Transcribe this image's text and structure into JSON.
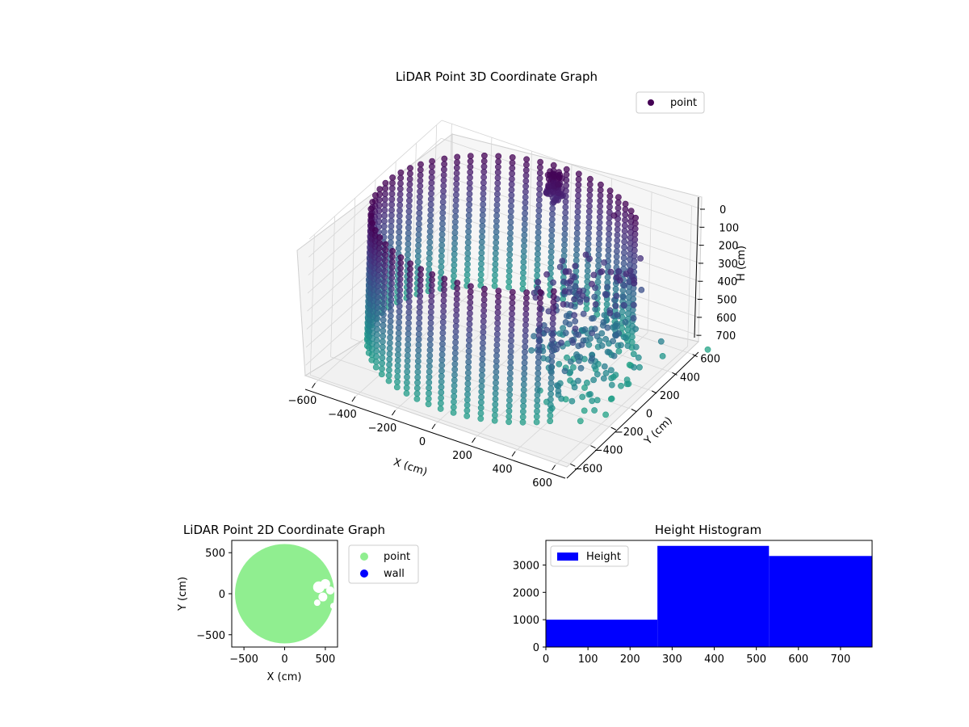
{
  "chart_data": [
    {
      "type": "scatter",
      "projection": "3d",
      "title": "LiDAR Point 3D Coordinate Graph",
      "xlabel": "X (cm)",
      "ylabel": "Y (cm)",
      "zlabel": "H (cm)",
      "xlim": [
        -650,
        650
      ],
      "ylim": [
        -650,
        650
      ],
      "zlim": [
        0,
        780
      ],
      "z_inverted": true,
      "xticks": [
        "−600",
        "−400",
        "−200",
        "0",
        "200",
        "400",
        "600"
      ],
      "yticks": [
        "−600",
        "−400",
        "−200",
        "0",
        "200",
        "400",
        "600"
      ],
      "zticks": [
        "0",
        "100",
        "200",
        "300",
        "400",
        "500",
        "600",
        "700"
      ],
      "legend": {
        "position": "top-right",
        "entries": [
          {
            "label": "point",
            "color": "#440154"
          }
        ]
      },
      "grid": true,
      "colormap": "viridis",
      "structure": {
        "wall_radius": 600,
        "wall_height": [
          0,
          720
        ],
        "gap_angle_deg": [
          -40,
          40
        ],
        "stray_points": [
          {
            "x": 620,
            "y": 360,
            "h": 680
          },
          {
            "x": 640,
            "y": 300,
            "h": 560
          },
          {
            "x": 700,
            "y": 650,
            "h": 760
          },
          {
            "x": 330,
            "y": 420,
            "h": 40
          }
        ]
      }
    },
    {
      "type": "scatter",
      "title": "LiDAR Point 2D Coordinate Graph",
      "xlabel": "X (cm)",
      "ylabel": "Y (cm)",
      "xlim": [
        -650,
        650
      ],
      "ylim": [
        -650,
        650
      ],
      "xticks": [
        "−500",
        "0",
        "500"
      ],
      "yticks": [
        "500",
        "0",
        "−500"
      ],
      "legend": {
        "position": "outside-right",
        "entries": [
          {
            "label": "point",
            "color": "#90ee90"
          },
          {
            "label": "wall",
            "color": "#0000ff"
          }
        ]
      },
      "disk_radius": 610
    },
    {
      "type": "bar",
      "title": "Height Histogram",
      "xlabel": "",
      "ylabel": "",
      "xlim": [
        0,
        775
      ],
      "ylim": [
        0,
        3900
      ],
      "xticks": [
        "0",
        "100",
        "200",
        "300",
        "400",
        "500",
        "600",
        "700"
      ],
      "yticks": [
        "0",
        "1000",
        "2000",
        "3000"
      ],
      "bins": [
        {
          "start": 0,
          "end": 265,
          "count": 1000
        },
        {
          "start": 265,
          "end": 530,
          "count": 3700
        },
        {
          "start": 530,
          "end": 775,
          "count": 3330
        }
      ],
      "color": "#0000ff",
      "legend": {
        "position": "top-left",
        "entries": [
          {
            "label": "Height",
            "color": "#0000ff"
          }
        ]
      }
    }
  ]
}
